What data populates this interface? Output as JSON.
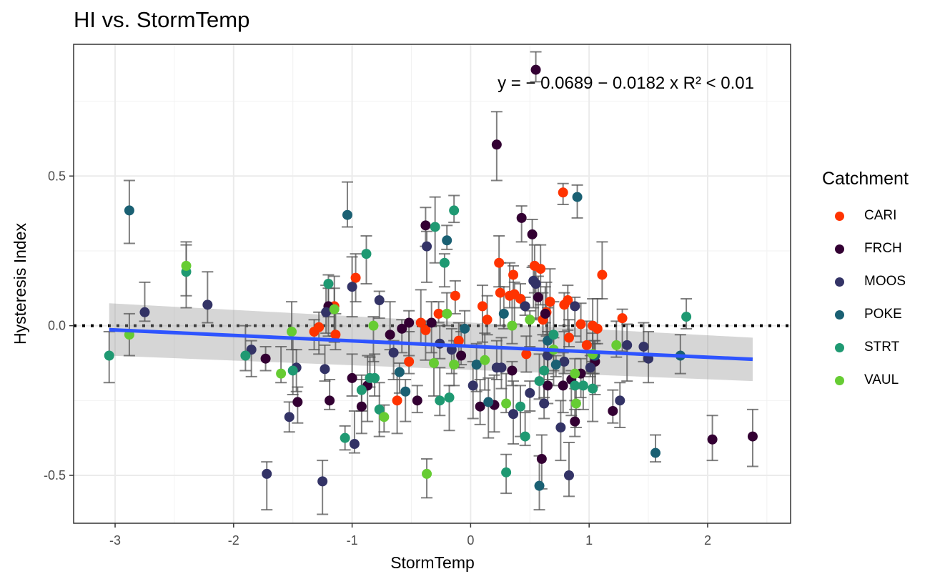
{
  "chart_data": {
    "type": "scatter",
    "title": "HI vs. StormTemp",
    "xlabel": "StormTemp",
    "ylabel": "Hysteresis Index",
    "xlim": [
      -3.35,
      2.7
    ],
    "ylim": [
      -0.66,
      0.94
    ],
    "x_ticks": [
      -3,
      -2,
      -1,
      0,
      1,
      2
    ],
    "x_tick_labels": [
      "-3",
      "-2",
      "-1",
      "0",
      "1",
      "2"
    ],
    "y_ticks": [
      -0.5,
      0.0,
      0.5
    ],
    "y_tick_labels": [
      "-0.5",
      "0.0",
      "0.5"
    ],
    "grid": true,
    "reference_line": {
      "y": 0,
      "style": "dotted"
    },
    "equation_text": "y = − 0.0689 − 0.0182 x   R² < 0.01",
    "regression": {
      "intercept": -0.0689,
      "slope": -0.0182,
      "x_range": [
        -3.05,
        2.38
      ],
      "band_left": [
        -0.1,
        0.075
      ],
      "band_right": [
        -0.185,
        -0.04
      ],
      "color": "#2E54FF"
    },
    "legend": {
      "title": "Catchment",
      "placement": "right"
    },
    "series": [
      {
        "name": "CARI",
        "color": "#FF3300",
        "points": [
          [
            -1.32,
            -0.02
          ],
          [
            -1.28,
            -0.005
          ],
          [
            -1.15,
            0.065
          ],
          [
            -1.14,
            -0.03
          ],
          [
            -0.97,
            0.16
          ],
          [
            -0.62,
            -0.25
          ],
          [
            -0.52,
            -0.12
          ],
          [
            -0.42,
            0.01
          ],
          [
            -0.38,
            -0.015
          ],
          [
            -0.27,
            0.04
          ],
          [
            -0.13,
            0.1
          ],
          [
            -0.1,
            -0.05
          ],
          [
            0.1,
            0.065
          ],
          [
            0.14,
            0.02
          ],
          [
            0.24,
            0.21
          ],
          [
            0.25,
            0.11
          ],
          [
            0.33,
            0.1
          ],
          [
            0.36,
            0.17
          ],
          [
            0.37,
            0.105
          ],
          [
            0.42,
            0.09
          ],
          [
            0.47,
            -0.095
          ],
          [
            0.54,
            0.2
          ],
          [
            0.59,
            0.19
          ],
          [
            0.61,
            0.02
          ],
          [
            0.64,
            0.045
          ],
          [
            0.67,
            0.08
          ],
          [
            0.78,
            0.445
          ],
          [
            0.79,
            0.07
          ],
          [
            0.82,
            0.085
          ],
          [
            0.83,
            -0.04
          ],
          [
            0.93,
            0.005
          ],
          [
            0.98,
            -0.065
          ],
          [
            1.03,
            0.0
          ],
          [
            1.07,
            -0.01
          ],
          [
            1.11,
            0.17
          ],
          [
            1.28,
            0.025
          ]
        ]
      },
      {
        "name": "FRCH",
        "color": "#330033",
        "points": [
          [
            -1.73,
            -0.11
          ],
          [
            -1.46,
            -0.255
          ],
          [
            -1.2,
            0.065
          ],
          [
            -1.19,
            -0.25
          ],
          [
            -1.0,
            -0.175
          ],
          [
            -0.92,
            -0.27
          ],
          [
            -0.87,
            -0.2
          ],
          [
            -0.68,
            -0.03
          ],
          [
            -0.58,
            -0.01
          ],
          [
            -0.52,
            0.01
          ],
          [
            -0.45,
            -0.25
          ],
          [
            -0.38,
            0.335
          ],
          [
            -0.33,
            0.01
          ],
          [
            -0.08,
            -0.1
          ],
          [
            0.08,
            -0.27
          ],
          [
            0.2,
            -0.265
          ],
          [
            0.22,
            0.605
          ],
          [
            0.35,
            -0.15
          ],
          [
            0.43,
            0.36
          ],
          [
            0.52,
            0.305
          ],
          [
            0.55,
            0.855
          ],
          [
            0.57,
            0.095
          ],
          [
            0.6,
            -0.445
          ],
          [
            0.63,
            0.04
          ],
          [
            0.65,
            -0.2
          ],
          [
            0.78,
            -0.2
          ],
          [
            0.85,
            -0.18
          ],
          [
            0.88,
            -0.32
          ],
          [
            0.93,
            -0.16
          ],
          [
            1.05,
            -0.12
          ],
          [
            1.2,
            -0.285
          ],
          [
            2.04,
            -0.38
          ],
          [
            2.38,
            -0.37
          ]
        ]
      },
      {
        "name": "MOOS",
        "color": "#333366",
        "points": [
          [
            -2.75,
            0.045
          ],
          [
            -2.22,
            0.07
          ],
          [
            -1.85,
            -0.08
          ],
          [
            -1.72,
            -0.495
          ],
          [
            -1.53,
            -0.305
          ],
          [
            -1.47,
            -0.14
          ],
          [
            -1.25,
            -0.52
          ],
          [
            -1.23,
            -0.145
          ],
          [
            -1.22,
            0.045
          ],
          [
            -1.0,
            0.13
          ],
          [
            -0.98,
            -0.395
          ],
          [
            -0.77,
            0.085
          ],
          [
            -0.65,
            -0.09
          ],
          [
            -0.37,
            0.265
          ],
          [
            -0.26,
            -0.06
          ],
          [
            -0.16,
            -0.08
          ],
          [
            0.02,
            -0.2
          ],
          [
            0.22,
            -0.14
          ],
          [
            0.26,
            -0.14
          ],
          [
            0.36,
            -0.295
          ],
          [
            0.46,
            0.065
          ],
          [
            0.5,
            -0.225
          ],
          [
            0.53,
            0.15
          ],
          [
            0.55,
            0.14
          ],
          [
            0.62,
            -0.26
          ],
          [
            0.65,
            -0.1
          ],
          [
            0.76,
            -0.34
          ],
          [
            0.79,
            -0.12
          ],
          [
            0.83,
            -0.5
          ],
          [
            0.88,
            0.065
          ],
          [
            1.01,
            -0.14
          ],
          [
            1.04,
            -0.1
          ],
          [
            1.26,
            -0.25
          ],
          [
            1.32,
            -0.065
          ],
          [
            1.46,
            -0.07
          ],
          [
            1.5,
            -0.11
          ]
        ]
      },
      {
        "name": "POKE",
        "color": "#1A6073",
        "points": [
          [
            -2.88,
            0.385
          ],
          [
            -1.04,
            0.37
          ],
          [
            -0.6,
            -0.155
          ],
          [
            -0.55,
            -0.22
          ],
          [
            -0.2,
            0.285
          ],
          [
            -0.05,
            -0.01
          ],
          [
            0.05,
            -0.13
          ],
          [
            0.15,
            -0.255
          ],
          [
            0.28,
            0.04
          ],
          [
            0.58,
            -0.535
          ],
          [
            0.65,
            -0.05
          ],
          [
            0.72,
            -0.13
          ],
          [
            0.9,
            0.43
          ],
          [
            1.05,
            -0.1
          ],
          [
            1.56,
            -0.425
          ],
          [
            1.77,
            -0.1
          ]
        ]
      },
      {
        "name": "STRT",
        "color": "#1F9972",
        "points": [
          [
            -3.05,
            -0.1
          ],
          [
            -2.4,
            0.18
          ],
          [
            -1.9,
            -0.1
          ],
          [
            -1.5,
            -0.15
          ],
          [
            -1.2,
            0.14
          ],
          [
            -1.06,
            -0.375
          ],
          [
            -0.92,
            -0.215
          ],
          [
            -0.88,
            0.24
          ],
          [
            -0.85,
            -0.175
          ],
          [
            -0.81,
            -0.175
          ],
          [
            -0.77,
            -0.28
          ],
          [
            -0.3,
            0.33
          ],
          [
            -0.26,
            -0.25
          ],
          [
            -0.22,
            0.21
          ],
          [
            -0.18,
            -0.24
          ],
          [
            -0.14,
            0.385
          ],
          [
            0.3,
            -0.49
          ],
          [
            0.42,
            -0.27
          ],
          [
            0.46,
            -0.37
          ],
          [
            0.58,
            -0.185
          ],
          [
            0.62,
            -0.15
          ],
          [
            0.7,
            -0.03
          ],
          [
            0.88,
            -0.2
          ],
          [
            0.95,
            -0.2
          ],
          [
            1.03,
            -0.21
          ],
          [
            1.82,
            0.03
          ]
        ]
      },
      {
        "name": "VAUL",
        "color": "#66CC33",
        "points": [
          [
            -2.88,
            -0.03
          ],
          [
            -2.4,
            0.2
          ],
          [
            -1.6,
            -0.16
          ],
          [
            -1.51,
            -0.02
          ],
          [
            -1.15,
            0.055
          ],
          [
            -0.82,
            -0.0
          ],
          [
            -0.73,
            -0.305
          ],
          [
            -0.37,
            -0.495
          ],
          [
            -0.31,
            -0.125
          ],
          [
            -0.2,
            0.04
          ],
          [
            -0.14,
            -0.13
          ],
          [
            0.12,
            -0.115
          ],
          [
            0.3,
            -0.26
          ],
          [
            0.35,
            -0.0
          ],
          [
            0.5,
            0.02
          ],
          [
            0.7,
            -0.08
          ],
          [
            0.88,
            -0.16
          ],
          [
            0.89,
            -0.26
          ],
          [
            1.03,
            -0.095
          ],
          [
            1.23,
            -0.065
          ]
        ]
      }
    ]
  }
}
